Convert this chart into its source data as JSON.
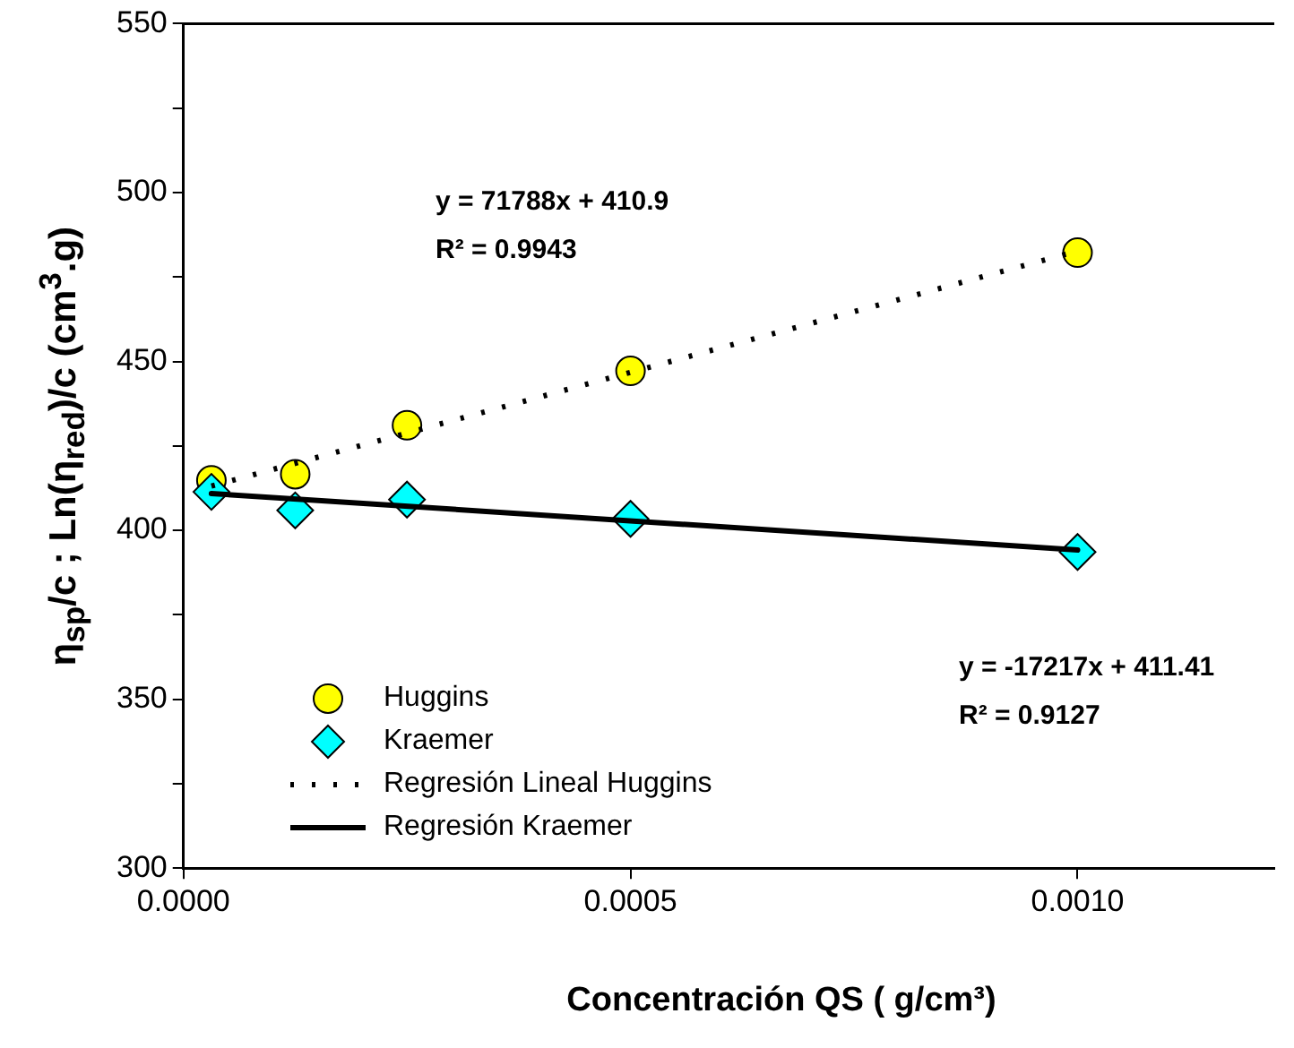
{
  "chart_data": {
    "type": "scatter",
    "xlabel": "Concentración QS (  g/cm³)",
    "ylabel": "η$_{sp}$/c ; Ln(η$_{red}$)/c (cm$^{3}$.g)",
    "xlim": [
      0,
      0.00122
    ],
    "xticks": [
      {
        "value": 0,
        "label": "0.0000"
      },
      {
        "value": 0.0005,
        "label": "0.0005"
      },
      {
        "value": 0.001,
        "label": "0.0010"
      }
    ],
    "ylim": [
      300,
      550
    ],
    "yticks": [
      300,
      {
        "value": 325,
        "label": null
      },
      350,
      {
        "value": 375,
        "label": null
      },
      400,
      {
        "value": 425,
        "label": null
      },
      450,
      {
        "value": 475,
        "label": null
      },
      500,
      {
        "value": 525,
        "label": null
      },
      550
    ],
    "grid": false,
    "legend": "bottom left",
    "annotations": [
      "y = 71788x + 410.9",
      "R² = 0.9943",
      "y = -17217x + 411.41",
      "R² = 0.9127"
    ],
    "series": [
      {
        "name": "Huggins",
        "marker": "circle",
        "color": "#ffff00",
        "x": [
          3.125e-05,
          0.000125,
          0.00025,
          0.0005,
          0.001
        ],
        "values": [
          414.8,
          416.6,
          431.1,
          447.2,
          482.2
        ]
      },
      {
        "name": "Kraemer",
        "marker": "diamond",
        "color": "#00ffff",
        "x": [
          3.125e-05,
          0.000125,
          0.00025,
          0.0005,
          0.001
        ],
        "values": [
          411.4,
          405.9,
          409.1,
          403.4,
          393.6
        ]
      },
      {
        "name": "Regresión Lineal Huggins",
        "type": "line",
        "line_style": "dotted",
        "marker": "none",
        "color": "#000000",
        "x": [
          3.125e-05,
          0.001
        ],
        "values": [
          413.1,
          482.7
        ]
      },
      {
        "name": "Regresión Kraemer",
        "type": "line",
        "line_style": "solid",
        "marker": "none",
        "color": "#000000",
        "x": [
          3.125e-05,
          0.001
        ],
        "values": [
          410.9,
          394.2
        ]
      }
    ]
  }
}
